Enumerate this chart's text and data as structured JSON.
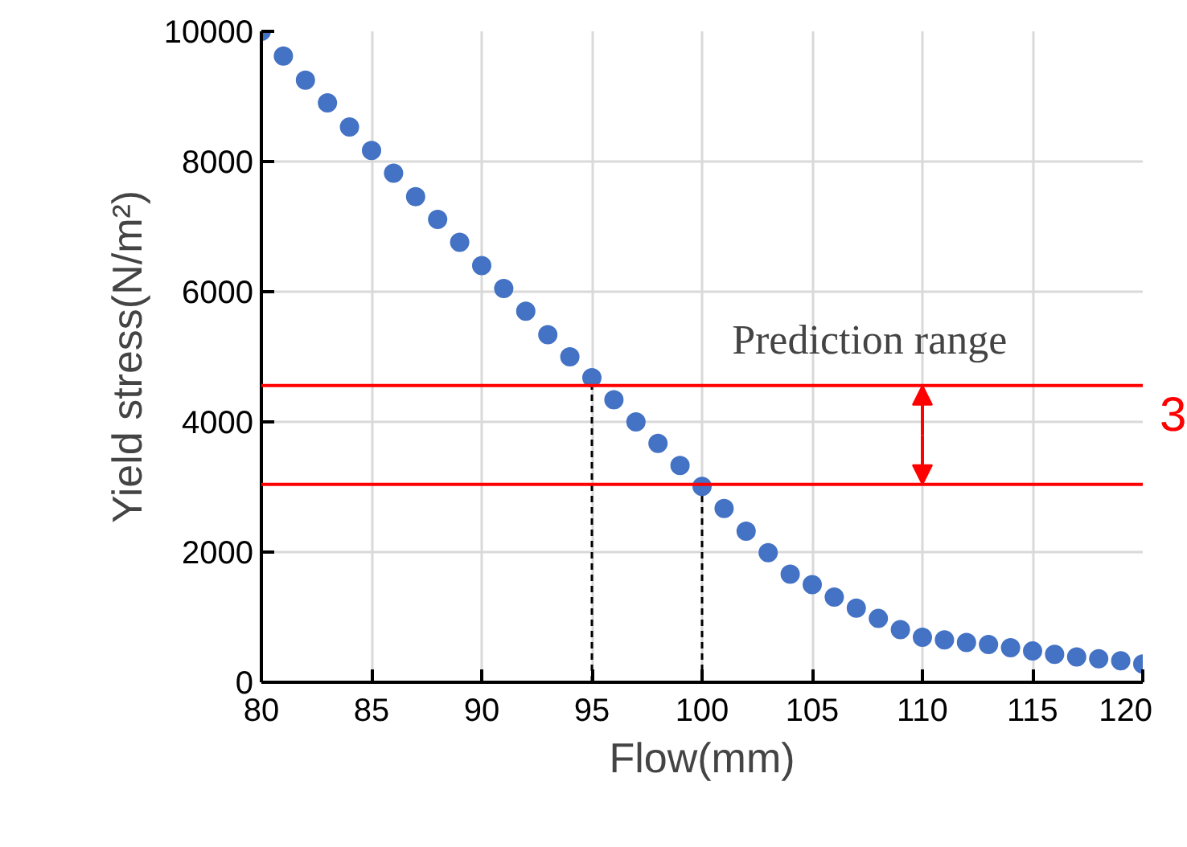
{
  "chart_data": {
    "type": "scatter",
    "xlabel": "Flow(mm)",
    "ylabel": "Yield stress(N/m²)",
    "x": [
      80,
      81,
      82,
      83,
      84,
      85,
      86,
      87,
      88,
      89,
      90,
      91,
      92,
      93,
      94,
      95,
      96,
      97,
      98,
      99,
      100,
      101,
      102,
      103,
      104,
      105,
      106,
      107,
      108,
      109,
      110,
      111,
      112,
      113,
      114,
      115,
      116,
      117,
      118,
      119,
      120
    ],
    "series": [
      {
        "color": "#4472c4",
        "values": [
          10000,
          9620,
          9250,
          8900,
          8530,
          8170,
          7820,
          7460,
          7110,
          6760,
          6400,
          6050,
          5700,
          5340,
          5000,
          4680,
          4340,
          4000,
          3670,
          3330,
          3010,
          2670,
          2320,
          1990,
          1660,
          1500,
          1310,
          1140,
          980,
          810,
          690,
          650,
          610,
          580,
          530,
          480,
          430,
          390,
          360,
          330,
          280
        ]
      }
    ],
    "xlim": [
      80,
      120
    ],
    "xticks": [
      80,
      85,
      90,
      95,
      100,
      105,
      110,
      115,
      120
    ],
    "ylim": [
      0,
      10000
    ],
    "yticks": [
      0,
      2000,
      4000,
      6000,
      8000,
      10000
    ],
    "grid": true,
    "marker": "circle",
    "ref_lines": [
      {
        "axis": "x",
        "value": 95,
        "color": "#000000",
        "line_style": "dashed"
      },
      {
        "axis": "x",
        "value": 100,
        "color": "#000000",
        "line_style": "dashed"
      },
      {
        "axis": "y",
        "value": 4560,
        "label": "Prediction range",
        "color": "#ff0000",
        "line_style": "solid"
      },
      {
        "axis": "y",
        "value": 3040,
        "color": "#ff0000",
        "line_style": "solid"
      }
    ],
    "annotations": [
      "3"
    ]
  }
}
